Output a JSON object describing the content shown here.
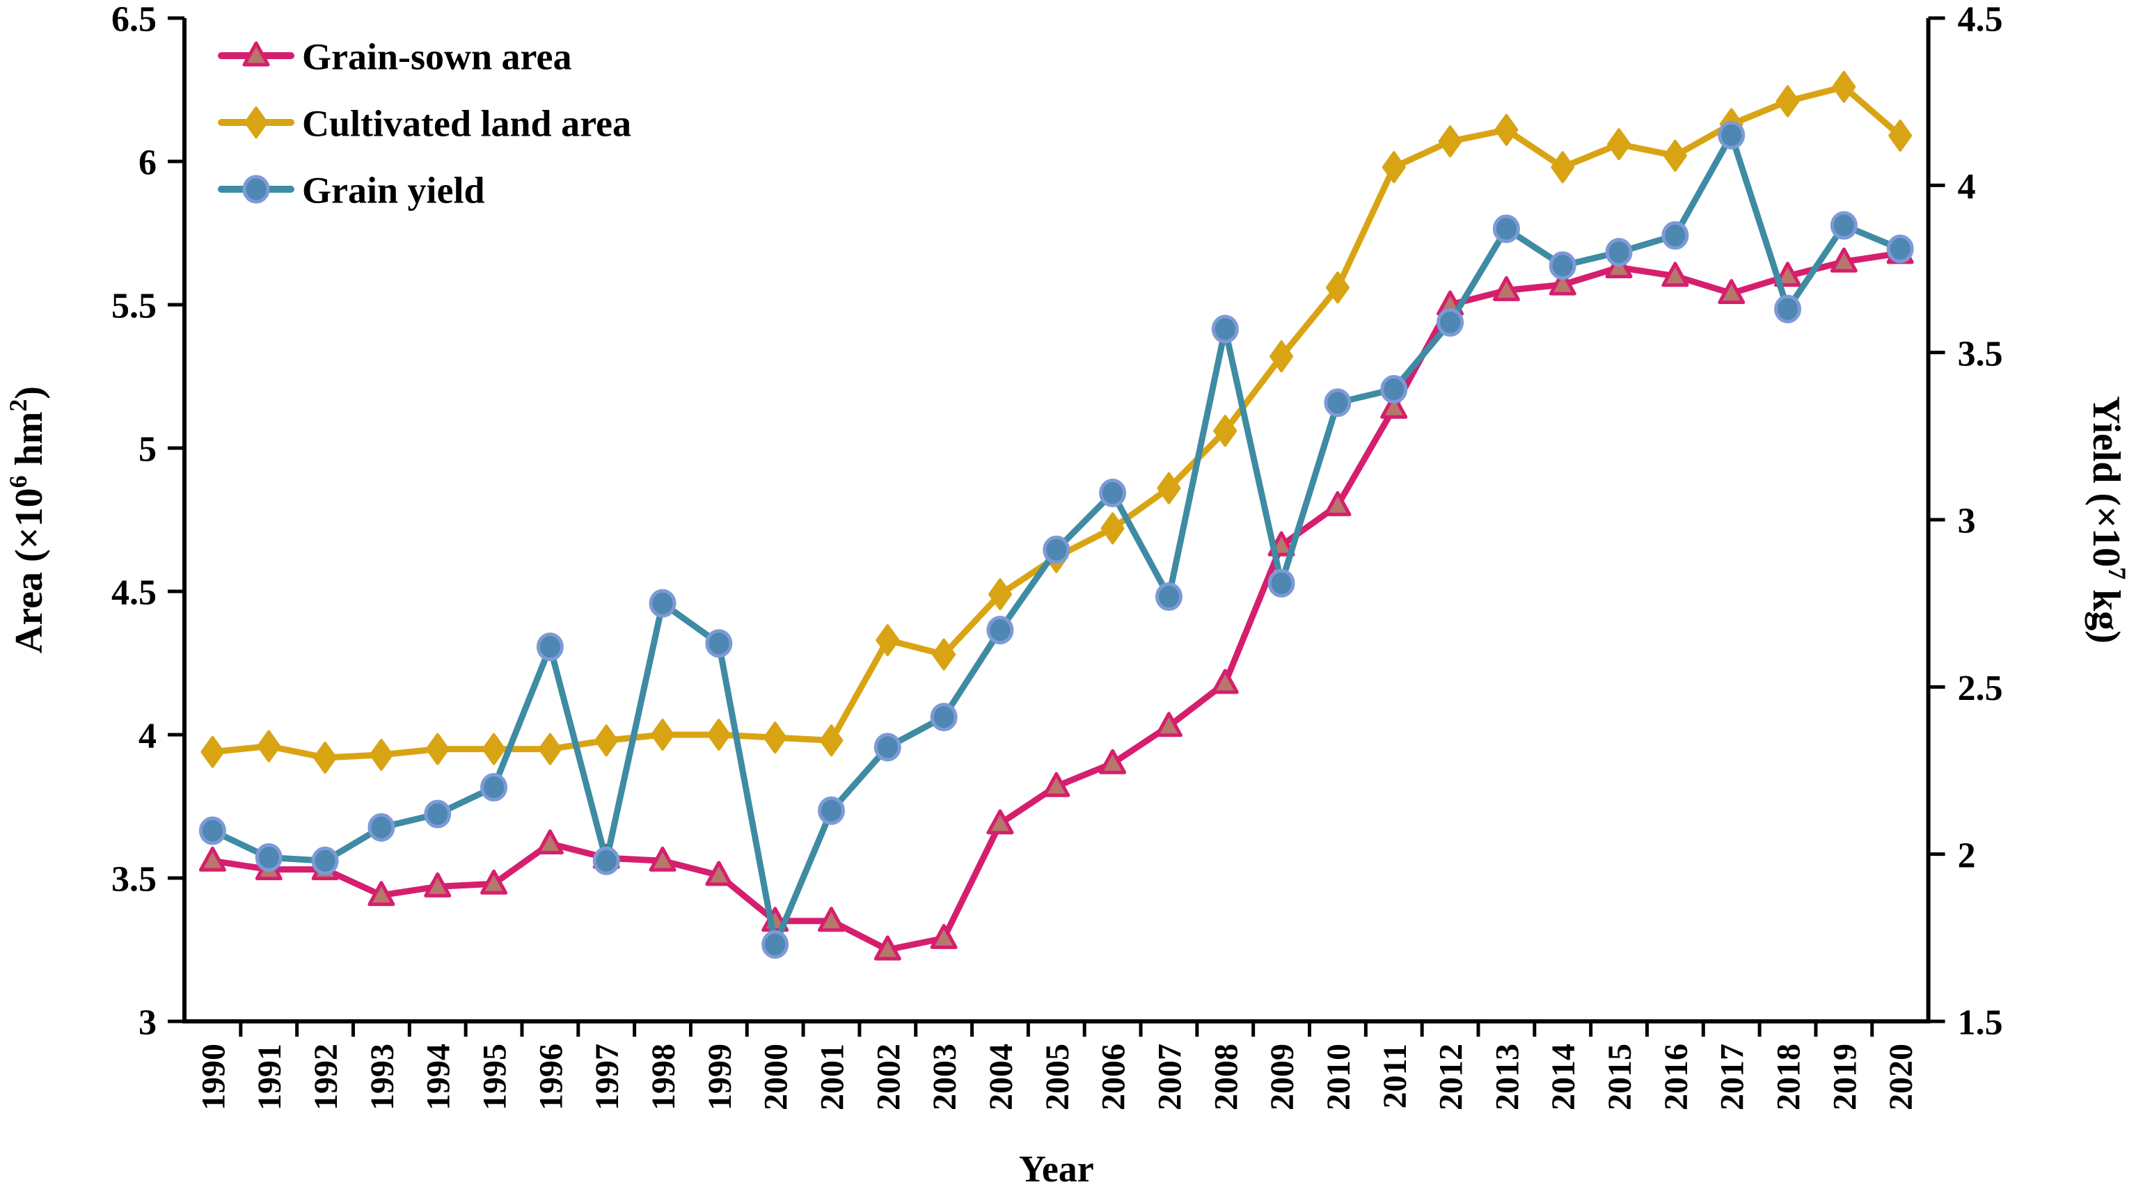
{
  "chart_data": {
    "type": "line",
    "title": "",
    "xlabel": "Year",
    "x_categories": [
      "1990",
      "1991",
      "1992",
      "1993",
      "1994",
      "1995",
      "1996",
      "1997",
      "1998",
      "1999",
      "2000",
      "2001",
      "2002",
      "2003",
      "2004",
      "2005",
      "2006",
      "2007",
      "2008",
      "2009",
      "2010",
      "2011",
      "2012",
      "2013",
      "2014",
      "2015",
      "2016",
      "2017",
      "2018",
      "2019",
      "2020"
    ],
    "left_axis": {
      "label": "Area (×10⁶ hm²)",
      "label_parts": [
        [
          "Area (×10",
          false
        ],
        [
          "6",
          true
        ],
        [
          " hm",
          false
        ],
        [
          "2",
          true
        ],
        [
          ")",
          false
        ]
      ],
      "ticks": [
        "6.5",
        "6",
        "5.5",
        "5",
        "4.5",
        "4",
        "3.5",
        "3"
      ],
      "tick_values": [
        6.5,
        6,
        5.5,
        5,
        4.5,
        4,
        3.5,
        3
      ],
      "range": [
        3,
        6.5
      ]
    },
    "right_axis": {
      "label": "Yield (×10⁷ kg)",
      "label_parts": [
        [
          "Yield (×10",
          false
        ],
        [
          "7",
          true
        ],
        [
          " kg)",
          false
        ]
      ],
      "ticks": [
        "4.5",
        "4",
        "3.5",
        "3",
        "2.5",
        "2",
        "1.5"
      ],
      "tick_values": [
        4.5,
        4,
        3.5,
        3,
        2.5,
        2,
        1.5
      ],
      "range": [
        1.5,
        4.5
      ]
    },
    "grid": false,
    "legend_position": "top-left",
    "axis_color": "#000000",
    "series": [
      {
        "name": "Grain-sown area",
        "axis": "left",
        "color": "#d61e6e",
        "marker": "triangle",
        "marker_fill": "#b7776b",
        "marker_stroke": "#d61e6e",
        "values": [
          3.56,
          3.53,
          3.53,
          3.44,
          3.47,
          3.48,
          3.62,
          3.57,
          3.56,
          3.51,
          3.35,
          3.35,
          3.25,
          3.29,
          3.69,
          3.82,
          3.9,
          4.03,
          4.18,
          4.66,
          4.8,
          5.14,
          5.5,
          5.55,
          5.57,
          5.63,
          5.6,
          5.54,
          5.6,
          5.65,
          5.68
        ]
      },
      {
        "name": "Cultivated land area",
        "axis": "left",
        "color": "#d9a413",
        "marker": "diamond",
        "marker_fill": "#d9a413",
        "marker_stroke": "#d9a413",
        "values": [
          3.94,
          3.96,
          3.92,
          3.93,
          3.95,
          3.95,
          3.95,
          3.98,
          4.0,
          4.0,
          3.99,
          3.98,
          4.33,
          4.28,
          4.49,
          4.62,
          4.72,
          4.86,
          5.06,
          5.32,
          5.56,
          5.98,
          6.07,
          6.11,
          5.98,
          6.06,
          6.02,
          6.13,
          6.21,
          6.26,
          6.09
        ]
      },
      {
        "name": "Grain yield",
        "axis": "right",
        "color": "#3e8ba3",
        "marker": "circle",
        "marker_fill": "#4d87b2",
        "marker_stroke": "#7d9ad6",
        "values": [
          2.07,
          1.99,
          1.98,
          2.08,
          2.12,
          2.2,
          2.62,
          1.98,
          2.75,
          2.63,
          1.73,
          2.13,
          2.32,
          2.41,
          2.67,
          2.91,
          3.08,
          2.77,
          3.57,
          2.81,
          3.35,
          3.39,
          3.59,
          3.87,
          3.76,
          3.8,
          3.85,
          4.15,
          3.63,
          3.88,
          3.81
        ]
      }
    ]
  }
}
